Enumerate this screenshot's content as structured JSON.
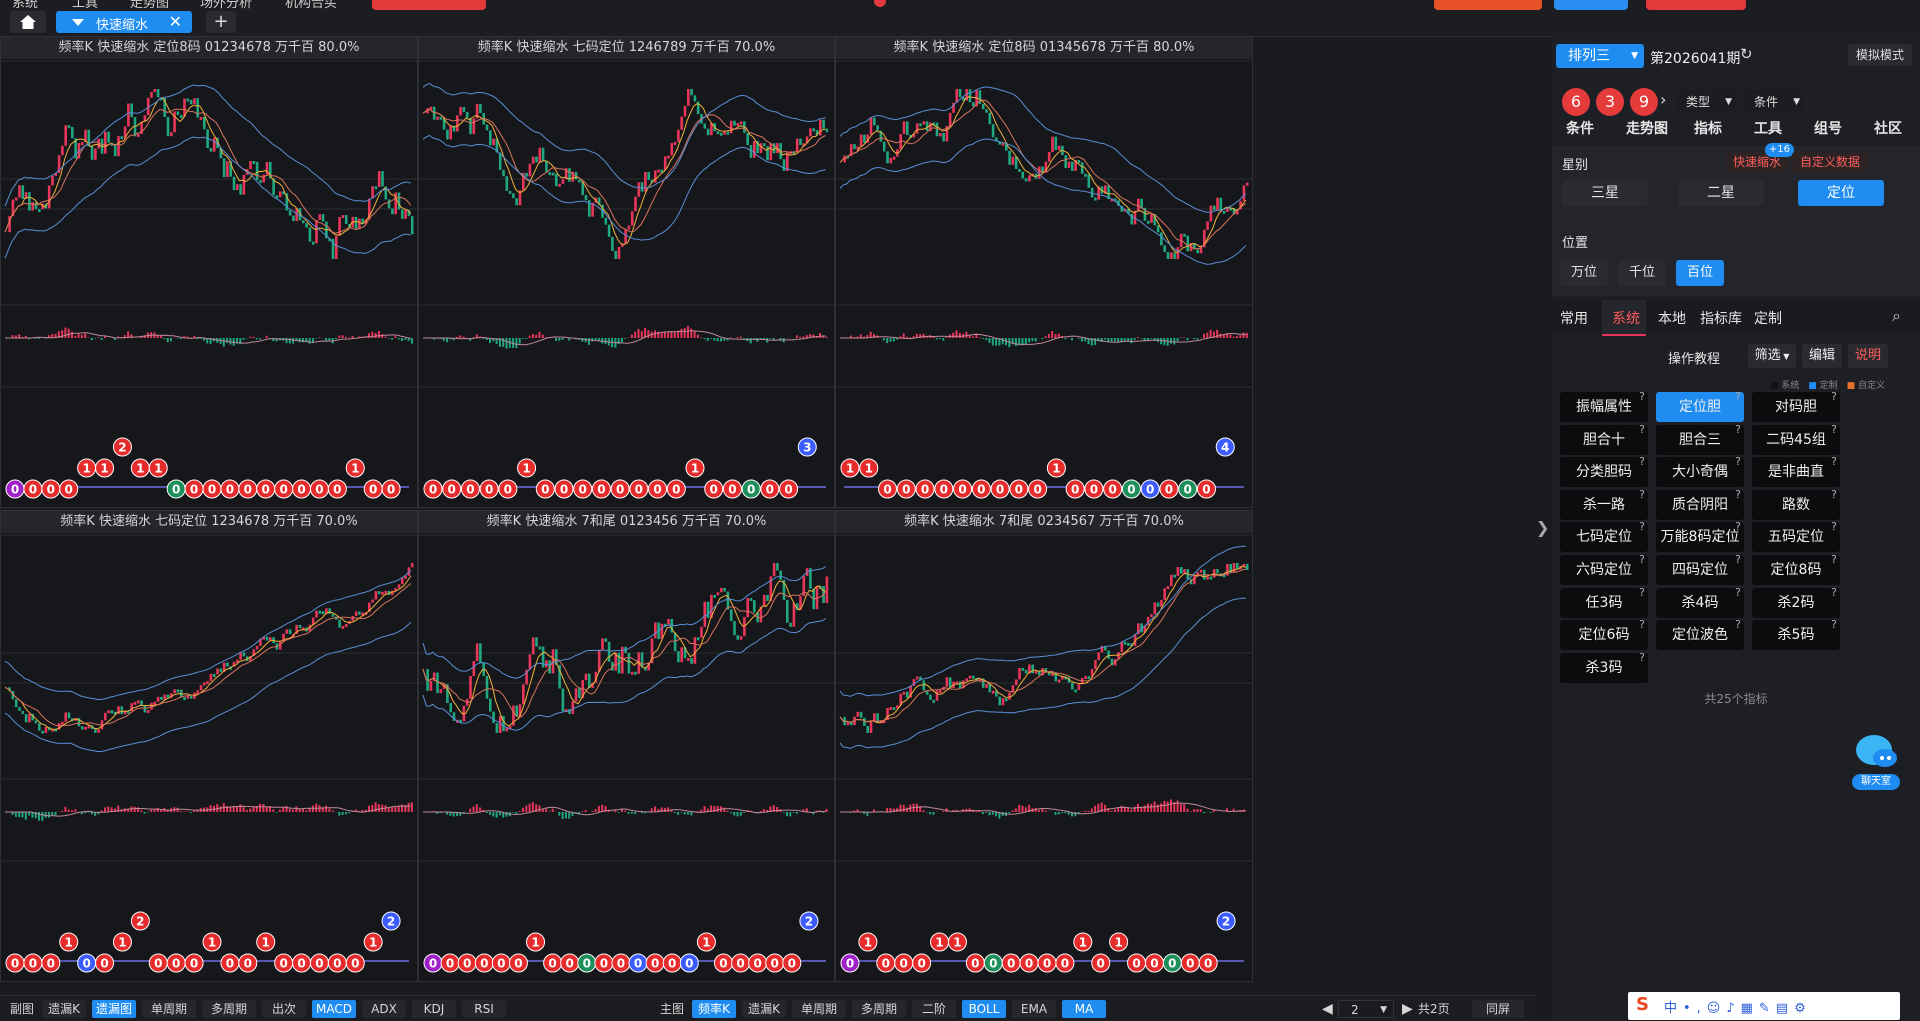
{
  "top": {
    "menu": [
      "系统",
      "工具",
      "走势图",
      "场外分析",
      "机构合买"
    ],
    "active_tab": "快速缩水"
  },
  "panels": [
    {
      "title": "频率K  快速缩水  定位8码 01234678  万千百  80.0%",
      "seed": 11,
      "balls": [
        "0",
        "0",
        "0",
        "0",
        "1",
        "1",
        "2",
        "1",
        "1",
        "0",
        "0",
        "0",
        "0",
        "0",
        "0",
        "0",
        "0",
        "0",
        "0",
        "1",
        "0",
        "0"
      ]
    },
    {
      "title": "频率K  快速缩水  七码定位 1246789  万千百  70.0%",
      "seed": 23,
      "balls": [
        "0",
        "0",
        "0",
        "0",
        "0",
        "1",
        "0",
        "0",
        "0",
        "0",
        "0",
        "0",
        "0",
        "0",
        "1",
        "0",
        "0",
        "0",
        "0",
        "0",
        "3"
      ]
    },
    {
      "title": "频率K  快速缩水  定位8码 01345678  万千百  80.0%",
      "seed": 37,
      "balls": [
        "1",
        "1",
        "0",
        "0",
        "0",
        "0",
        "0",
        "0",
        "0",
        "0",
        "0",
        "1",
        "0",
        "0",
        "0",
        "0",
        "0",
        "0",
        "0",
        "0",
        "4"
      ]
    },
    {
      "title": "频率K  快速缩水  七码定位 1234678  万千百  70.0%",
      "seed": 41,
      "balls": [
        "0",
        "0",
        "0",
        "1",
        "0",
        "0",
        "1",
        "2",
        "0",
        "0",
        "0",
        "1",
        "0",
        "0",
        "1",
        "0",
        "0",
        "0",
        "0",
        "0",
        "1",
        "2"
      ]
    },
    {
      "title": "频率K  快速缩水  7和尾 0123456  万千百  70.0%",
      "seed": 53,
      "balls": [
        "0",
        "0",
        "0",
        "0",
        "0",
        "0",
        "1",
        "0",
        "0",
        "0",
        "0",
        "0",
        "0",
        "0",
        "0",
        "0",
        "1",
        "0",
        "0",
        "0",
        "0",
        "0",
        "2"
      ]
    },
    {
      "title": "频率K  快速缩水  7和尾 0234567  万千百  70.0%",
      "seed": 67,
      "balls": [
        "0",
        "1",
        "0",
        "0",
        "0",
        "1",
        "1",
        "0",
        "0",
        "0",
        "0",
        "0",
        "0",
        "1",
        "0",
        "1",
        "0",
        "0",
        "0",
        "0",
        "0",
        "2"
      ]
    }
  ],
  "bottom": {
    "left_label": "副图",
    "left_btns": [
      "遗漏K",
      "遗漏图",
      "单周期",
      "多周期",
      "出次",
      "MACD",
      "ADX",
      "KDJ",
      "RSI"
    ],
    "left_active": [
      1,
      5
    ],
    "main_label": "主图",
    "main_btns": [
      "频率K",
      "遗漏K",
      "单周期",
      "多周期",
      "二阶",
      "BOLL",
      "EMA",
      "MA"
    ],
    "main_active": [
      0,
      5,
      7
    ],
    "page_value": "2",
    "page_total": "共2页",
    "sync": "同屏"
  },
  "right": {
    "lottery": "排列三",
    "period": "第2026041期",
    "mode": "模拟模式",
    "balls": [
      "6",
      "3",
      "9"
    ],
    "type_label": "类型",
    "cond_label": "条件",
    "nav": [
      "条件",
      "走势图",
      "指标",
      "工具",
      "组号",
      "社区"
    ],
    "star_label": "星别",
    "fast_shrink": "快速缩水",
    "fast_badge": "+16",
    "custom_data": "自定义数据",
    "stars": [
      "三星",
      "二星",
      "定位"
    ],
    "pos_label": "位置",
    "positions": [
      "万位",
      "千位",
      "百位"
    ],
    "tabs": [
      "常用",
      "系统",
      "本地",
      "指标库",
      "定制"
    ],
    "tutorial": "操作教程",
    "filter": "筛选",
    "edit": "编辑",
    "explain": "说明",
    "legend": [
      "系统",
      "定制",
      "自定义"
    ],
    "indicators": [
      "振幅属性",
      "定位胆",
      "对码胆",
      "胆合十",
      "胆合三",
      "二码45组",
      "分类胆码",
      "大小奇偶",
      "是非曲直",
      "杀一路",
      "质合阴阳",
      "路数",
      "七码定位",
      "万能8码定位",
      "五码定位",
      "六码定位",
      "四码定位",
      "定位8码",
      "任3码",
      "杀4码",
      "杀2码",
      "定位6码",
      "定位波色",
      "杀5码",
      "杀3码"
    ],
    "count": "共25个指标",
    "chat": "聊天室"
  },
  "colors": {
    "accent": "#1e8cf0",
    "up": "#e8365a",
    "down": "#1fa77f",
    "ball_red": "#e52b2b",
    "ball_blue": "#3d5cff",
    "ball_green": "#1d8f5a",
    "ball_purple": "#a020c8"
  }
}
